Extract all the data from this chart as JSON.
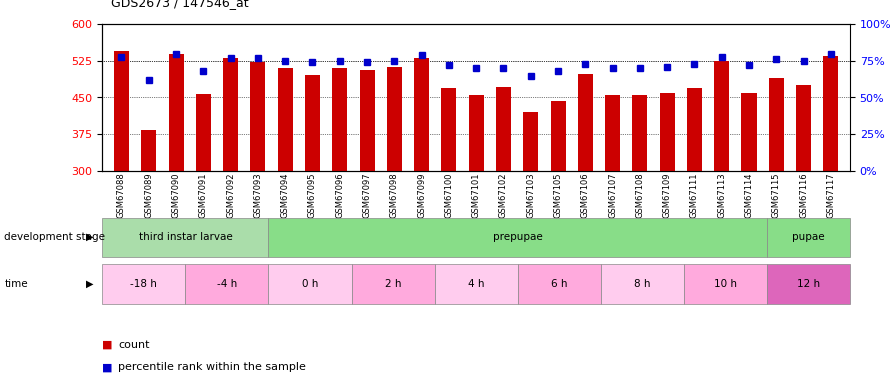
{
  "title": "GDS2673 / 147546_at",
  "samples": [
    "GSM67088",
    "GSM67089",
    "GSM67090",
    "GSM67091",
    "GSM67092",
    "GSM67093",
    "GSM67094",
    "GSM67095",
    "GSM67096",
    "GSM67097",
    "GSM67098",
    "GSM67099",
    "GSM67100",
    "GSM67101",
    "GSM67102",
    "GSM67103",
    "GSM67105",
    "GSM67106",
    "GSM67107",
    "GSM67108",
    "GSM67109",
    "GSM67111",
    "GSM67113",
    "GSM67114",
    "GSM67115",
    "GSM67116",
    "GSM67117"
  ],
  "counts": [
    545,
    383,
    540,
    458,
    530,
    522,
    510,
    497,
    510,
    507,
    512,
    530,
    470,
    455,
    472,
    420,
    443,
    498,
    455,
    455,
    460,
    470,
    525,
    460,
    490,
    475,
    535
  ],
  "percentile": [
    78,
    62,
    80,
    68,
    77,
    77,
    75,
    74,
    75,
    74,
    75,
    79,
    72,
    70,
    70,
    65,
    68,
    73,
    70,
    70,
    71,
    73,
    78,
    72,
    76,
    75,
    80
  ],
  "ylim_left": [
    300,
    600
  ],
  "ylim_right": [
    0,
    100
  ],
  "yticks_left": [
    300,
    375,
    450,
    525,
    600
  ],
  "yticks_right": [
    0,
    25,
    50,
    75,
    100
  ],
  "bar_color": "#cc0000",
  "dot_color": "#0000cc",
  "background_color": "#ffffff",
  "dev_groups": [
    {
      "name": "third instar larvae",
      "start": 0,
      "end": 6,
      "color": "#aaddaa"
    },
    {
      "name": "prepupae",
      "start": 6,
      "end": 24,
      "color": "#88dd88"
    },
    {
      "name": "pupae",
      "start": 24,
      "end": 27,
      "color": "#88dd88"
    }
  ],
  "time_groups": [
    {
      "name": "-18 h",
      "start": 0,
      "end": 3,
      "color": "#ffccee"
    },
    {
      "name": "-4 h",
      "start": 3,
      "end": 6,
      "color": "#ffaadd"
    },
    {
      "name": "0 h",
      "start": 6,
      "end": 9,
      "color": "#ffccee"
    },
    {
      "name": "2 h",
      "start": 9,
      "end": 12,
      "color": "#ffaadd"
    },
    {
      "name": "4 h",
      "start": 12,
      "end": 15,
      "color": "#ffccee"
    },
    {
      "name": "6 h",
      "start": 15,
      "end": 18,
      "color": "#ffaadd"
    },
    {
      "name": "8 h",
      "start": 18,
      "end": 21,
      "color": "#ffccee"
    },
    {
      "name": "10 h",
      "start": 21,
      "end": 24,
      "color": "#ffaadd"
    },
    {
      "name": "12 h",
      "start": 24,
      "end": 27,
      "color": "#dd66bb"
    }
  ]
}
